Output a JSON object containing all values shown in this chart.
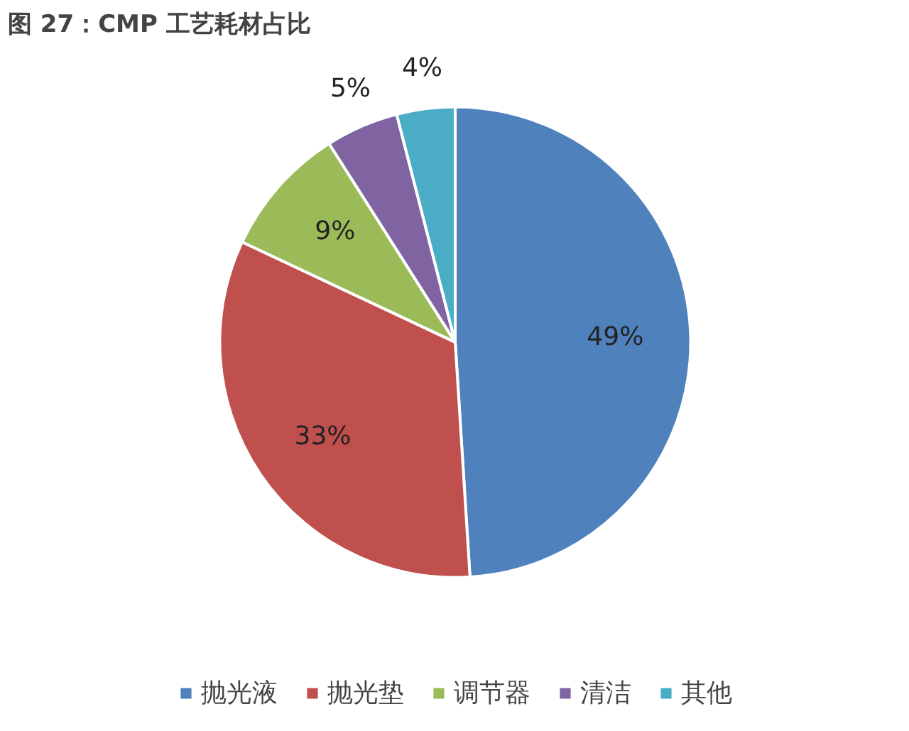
{
  "chart_data": {
    "type": "pie",
    "title": "图 27：CMP 工艺耗材占比",
    "categories": [
      "抛光液",
      "抛光垫",
      "调节器",
      "清洁",
      "其他"
    ],
    "values": [
      49,
      33,
      9,
      5,
      4
    ],
    "colors": [
      "#4f81bd",
      "#c0504d",
      "#9bbb59",
      "#8064a2",
      "#4bacc6"
    ],
    "value_labels": [
      "49%",
      "33%",
      "9%",
      "5%",
      "4%"
    ],
    "legend": "bottom"
  }
}
